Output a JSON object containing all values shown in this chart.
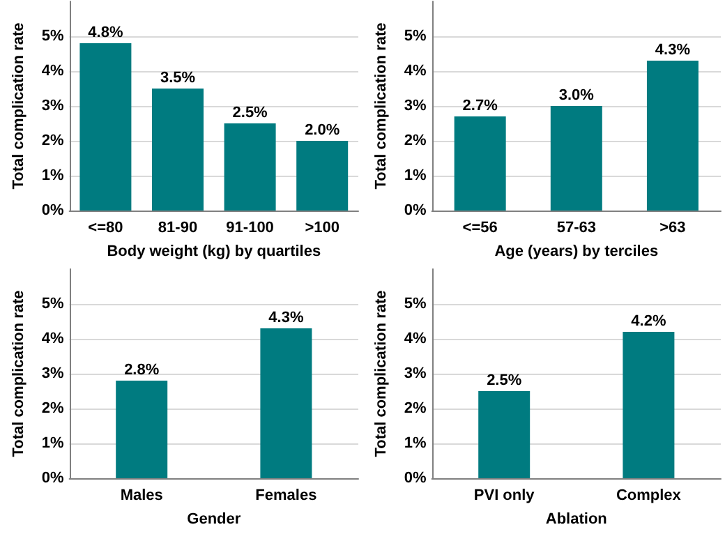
{
  "chart_data": [
    {
      "type": "bar",
      "xlabel": "Body weight (kg) by quartiles",
      "ylabel": "Total complication rate",
      "categories": [
        "<=80",
        "81-90",
        "91-100",
        ">100"
      ],
      "values": [
        4.8,
        3.5,
        2.5,
        2.0
      ],
      "value_labels": [
        "4.8%",
        "3.5%",
        "2.5%",
        "2.0%"
      ],
      "color": "#007b80",
      "ylim": [
        0,
        6
      ],
      "yticks": [
        {
          "value": 0,
          "label": "0%"
        },
        {
          "value": 1,
          "label": "1%"
        },
        {
          "value": 2,
          "label": "2%"
        },
        {
          "value": 3,
          "label": "3%"
        },
        {
          "value": 4,
          "label": "4%"
        },
        {
          "value": 5,
          "label": "5%"
        }
      ],
      "grid": "y"
    },
    {
      "type": "bar",
      "xlabel": "Age (years) by terciles",
      "ylabel": "Total complication rate",
      "categories": [
        "<=56",
        "57-63",
        ">63"
      ],
      "values": [
        2.7,
        3.0,
        4.3
      ],
      "value_labels": [
        "2.7%",
        "3.0%",
        "4.3%"
      ],
      "color": "#007b80",
      "ylim": [
        0,
        6
      ],
      "yticks": [
        {
          "value": 0,
          "label": "0%"
        },
        {
          "value": 1,
          "label": "1%"
        },
        {
          "value": 2,
          "label": "2%"
        },
        {
          "value": 3,
          "label": "3%"
        },
        {
          "value": 4,
          "label": "4%"
        },
        {
          "value": 5,
          "label": "5%"
        }
      ],
      "grid": "y"
    },
    {
      "type": "bar",
      "xlabel": "Gender",
      "ylabel": "Total complication rate",
      "categories": [
        "Males",
        "Females"
      ],
      "values": [
        2.8,
        4.3
      ],
      "value_labels": [
        "2.8%",
        "4.3%"
      ],
      "color": "#007b80",
      "ylim": [
        0,
        6
      ],
      "yticks": [
        {
          "value": 0,
          "label": "0%"
        },
        {
          "value": 1,
          "label": "1%"
        },
        {
          "value": 2,
          "label": "2%"
        },
        {
          "value": 3,
          "label": "3%"
        },
        {
          "value": 4,
          "label": "4%"
        },
        {
          "value": 5,
          "label": "5%"
        }
      ],
      "grid": "y"
    },
    {
      "type": "bar",
      "xlabel": "Ablation",
      "ylabel": "Total complication rate",
      "categories": [
        "PVI only",
        "Complex"
      ],
      "values": [
        2.5,
        4.2
      ],
      "value_labels": [
        "2.5%",
        "4.2%"
      ],
      "color": "#007b80",
      "ylim": [
        0,
        6
      ],
      "yticks": [
        {
          "value": 0,
          "label": "0%"
        },
        {
          "value": 1,
          "label": "1%"
        },
        {
          "value": 2,
          "label": "2%"
        },
        {
          "value": 3,
          "label": "3%"
        },
        {
          "value": 4,
          "label": "4%"
        },
        {
          "value": 5,
          "label": "5%"
        }
      ],
      "grid": "y"
    }
  ]
}
